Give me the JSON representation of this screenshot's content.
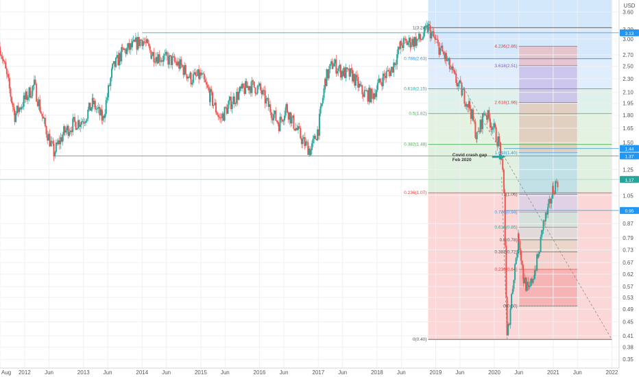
{
  "currency": "USD",
  "colors": {
    "up": "#26a69a",
    "down": "#ef5350",
    "support_line": "#4aa3c8",
    "price_tag": "#26a69a",
    "level_tag": "#2196f3",
    "trend": "#888888",
    "zone_blue": "#cfe5fb",
    "zone_green": "#dcefdc",
    "zone_red": "#fbd0d0"
  },
  "chart_data": {
    "type": "candlestick",
    "y_scale": "log",
    "ylim": [
      0.33,
      3.9
    ],
    "xlim": [
      "2011-08-01",
      "2022-02-15"
    ],
    "x_ticks": [
      {
        "date": "2011-08-01",
        "label": "Aug"
      },
      {
        "date": "2012-01-01",
        "label": "2012"
      },
      {
        "date": "2012-06-01",
        "label": "Jun"
      },
      {
        "date": "2013-01-01",
        "label": "2013"
      },
      {
        "date": "2013-06-01",
        "label": "Jun"
      },
      {
        "date": "2014-01-01",
        "label": "2014"
      },
      {
        "date": "2014-06-01",
        "label": "Jun"
      },
      {
        "date": "2015-01-01",
        "label": "2015"
      },
      {
        "date": "2015-06-01",
        "label": "Jun"
      },
      {
        "date": "2016-01-01",
        "label": "2016"
      },
      {
        "date": "2016-06-01",
        "label": "Jun"
      },
      {
        "date": "2017-01-01",
        "label": "2017"
      },
      {
        "date": "2017-06-01",
        "label": "Jun"
      },
      {
        "date": "2018-01-01",
        "label": "2018"
      },
      {
        "date": "2018-06-01",
        "label": "Jun"
      },
      {
        "date": "2019-01-01",
        "label": "2019"
      },
      {
        "date": "2019-06-01",
        "label": "Jun"
      },
      {
        "date": "2020-01-01",
        "label": "2020"
      },
      {
        "date": "2020-06-01",
        "label": "Jun"
      },
      {
        "date": "2021-01-01",
        "label": "2021"
      },
      {
        "date": "2021-06-01",
        "label": "Jun"
      },
      {
        "date": "2022-01-01",
        "label": "2022"
      }
    ],
    "y_ticks": [
      3.6,
      3.2,
      3.0,
      2.7,
      2.5,
      2.3,
      2.1,
      1.95,
      1.8,
      1.65,
      1.5,
      1.25,
      1.05,
      0.87,
      0.79,
      0.73,
      0.67,
      0.62,
      0.57,
      0.53,
      0.49,
      0.45,
      0.41,
      0.38,
      0.35
    ],
    "y_tick_labels": [
      "3.60",
      "3.20",
      "3.00",
      "2.70",
      "2.50",
      "2.30",
      "2.10",
      "1.95",
      "1.80",
      "1.65",
      "1.50",
      "1.25",
      "1.05",
      "0.87",
      "0.79",
      "0.73",
      "0.67",
      "0.62",
      "0.57",
      "0.53",
      "0.49",
      "0.45",
      "0.41",
      "0.38",
      "0.35"
    ],
    "price_path": [
      [
        "2011-08-01",
        2.85
      ],
      [
        "2011-09-15",
        2.3
      ],
      [
        "2011-11-01",
        1.8
      ],
      [
        "2012-01-01",
        2.0
      ],
      [
        "2012-03-01",
        2.2
      ],
      [
        "2012-05-01",
        1.7
      ],
      [
        "2012-07-01",
        1.4
      ],
      [
        "2012-09-01",
        1.6
      ],
      [
        "2012-11-01",
        1.7
      ],
      [
        "2013-01-01",
        1.75
      ],
      [
        "2013-03-01",
        1.95
      ],
      [
        "2013-05-01",
        1.75
      ],
      [
        "2013-07-01",
        2.45
      ],
      [
        "2013-09-01",
        2.75
      ],
      [
        "2013-11-01",
        2.85
      ],
      [
        "2014-01-01",
        3.0
      ],
      [
        "2014-03-01",
        2.72
      ],
      [
        "2014-05-01",
        2.65
      ],
      [
        "2014-07-01",
        2.6
      ],
      [
        "2014-09-01",
        2.5
      ],
      [
        "2014-11-01",
        2.3
      ],
      [
        "2015-01-01",
        2.35
      ],
      [
        "2015-03-01",
        2.05
      ],
      [
        "2015-05-01",
        1.75
      ],
      [
        "2015-07-01",
        1.95
      ],
      [
        "2015-09-01",
        2.1
      ],
      [
        "2015-11-01",
        2.2
      ],
      [
        "2016-01-01",
        2.15
      ],
      [
        "2016-03-01",
        1.9
      ],
      [
        "2016-05-01",
        1.7
      ],
      [
        "2016-06-15",
        1.9
      ],
      [
        "2016-08-01",
        1.7
      ],
      [
        "2016-10-01",
        1.5
      ],
      [
        "2016-11-15",
        1.42
      ],
      [
        "2017-01-01",
        1.65
      ],
      [
        "2017-02-15",
        2.3
      ],
      [
        "2017-04-01",
        2.55
      ],
      [
        "2017-06-01",
        2.4
      ],
      [
        "2017-08-01",
        2.35
      ],
      [
        "2017-10-01",
        2.1
      ],
      [
        "2017-12-01",
        2.05
      ],
      [
        "2018-02-01",
        2.3
      ],
      [
        "2018-04-01",
        2.45
      ],
      [
        "2018-06-01",
        2.9
      ],
      [
        "2018-08-01",
        2.95
      ],
      [
        "2018-10-01",
        3.0
      ],
      [
        "2018-11-15",
        3.24
      ],
      [
        "2019-01-01",
        2.95
      ],
      [
        "2019-03-01",
        2.65
      ],
      [
        "2019-05-01",
        2.3
      ],
      [
        "2019-06-15",
        2.1
      ],
      [
        "2019-08-01",
        1.9
      ],
      [
        "2019-09-15",
        1.55
      ],
      [
        "2019-11-01",
        1.85
      ],
      [
        "2019-12-15",
        1.7
      ],
      [
        "2020-02-01",
        1.48
      ],
      [
        "2020-03-01",
        1.1
      ],
      [
        "2020-03-20",
        0.4
      ],
      [
        "2020-05-01",
        0.62
      ],
      [
        "2020-06-01",
        0.8
      ],
      [
        "2020-07-01",
        0.6
      ],
      [
        "2020-08-01",
        0.55
      ],
      [
        "2020-09-01",
        0.62
      ],
      [
        "2020-10-01",
        0.7
      ],
      [
        "2020-11-01",
        0.87
      ],
      [
        "2020-12-01",
        0.95
      ],
      [
        "2021-01-01",
        1.1
      ],
      [
        "2021-02-01",
        1.17
      ]
    ],
    "horizontal_lines": [
      {
        "name": "top-line",
        "y": 3.13,
        "from": "2014-01-01",
        "label": "3.13"
      },
      {
        "name": "support-line",
        "y": 1.37,
        "from": "2012-07-01",
        "label": "1.37"
      },
      {
        "name": "crash-gap-line",
        "y": 1.44,
        "from": "2020-03-01",
        "label": "1.44"
      },
      {
        "name": "mid-line",
        "y": 0.95,
        "from": "2020-03-01",
        "label": "0.95"
      },
      {
        "name": "price-line",
        "y": 1.17,
        "from": "2011-08-01",
        "label": "1.17"
      }
    ],
    "fib_retracement": {
      "x_start": "2018-11-15",
      "x_end": "2022-01-01",
      "levels": [
        {
          "label": "1(3.24)",
          "value": 3.24,
          "color": "#555555"
        },
        {
          "label": "0.786(2.63)",
          "value": 2.63,
          "color": "#2196f3"
        },
        {
          "label": "0.618(2.15)",
          "value": 2.15,
          "color": "#26a69a"
        },
        {
          "label": "0.5(1.82)",
          "value": 1.82,
          "color": "#4caf50"
        },
        {
          "label": "0.382(1.48)",
          "value": 1.48,
          "color": "#4caf50"
        },
        {
          "label": "0.236(1.07)",
          "value": 1.07,
          "color": "#e53935"
        },
        {
          "label": "0(0.40)",
          "value": 0.4,
          "color": "#555555"
        }
      ]
    },
    "fib_extension": {
      "x_start": "2020-06-01",
      "x_end": "2021-06-01",
      "levels": [
        {
          "label": "4.236(2.86)",
          "value": 2.86,
          "color": "#e53935"
        },
        {
          "label": "3.618(2.51)",
          "value": 2.51,
          "color": "#7e57c2"
        },
        {
          "label": "2.618(1.96)",
          "value": 1.96,
          "color": "#e53935"
        },
        {
          "label": "1.618(1.40)",
          "value": 1.4,
          "color": "#2196f3"
        },
        {
          "label": "1(1.06)",
          "value": 1.06,
          "color": "#555555"
        },
        {
          "label": "0.786(0.94)",
          "value": 0.94,
          "color": "#2196f3"
        },
        {
          "label": "0.618(0.85)",
          "value": 0.85,
          "color": "#26a69a"
        },
        {
          "label": "0.5(0.78)",
          "value": 0.78,
          "color": "#555555"
        },
        {
          "label": "0.382(0.72)",
          "value": 0.72,
          "color": "#555555"
        },
        {
          "label": "0.236(0.64)",
          "value": 0.64,
          "color": "#e53935"
        },
        {
          "label": "0(0.50)",
          "value": 0.5,
          "color": "#555555"
        }
      ]
    },
    "annotation": {
      "lines": [
        "Covid crash gap",
        "Feb 2020"
      ],
      "date": "2019-12-01",
      "value": 1.4
    }
  }
}
